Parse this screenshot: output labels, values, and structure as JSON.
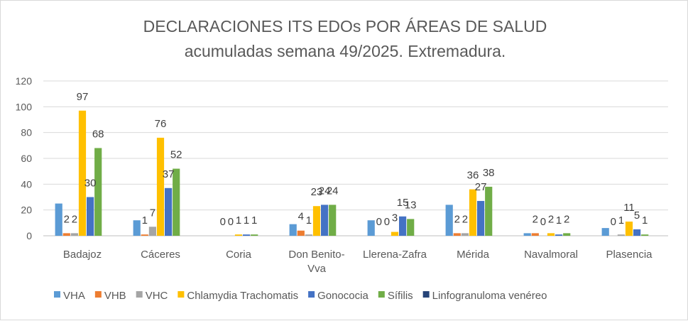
{
  "chart_data": {
    "type": "bar",
    "title": "DECLARACIONES ITS EDOs POR ÁREAS DE SALUD",
    "subtitle": "acumuladas semana 49/2025. Extremadura.",
    "categories": [
      "Badajoz",
      "Cáceres",
      "Coria",
      "Don Benito-Vva",
      "Llerena-Zafra",
      "Mérida",
      "Navalmoral",
      "Plasencia"
    ],
    "category_lines": [
      [
        "Badajoz"
      ],
      [
        "Cáceres"
      ],
      [
        "Coria"
      ],
      [
        "Don Benito-",
        "Vva"
      ],
      [
        "Llerena-Zafra"
      ],
      [
        "Mérida"
      ],
      [
        "Navalmoral"
      ],
      [
        "Plasencia"
      ]
    ],
    "ylim": [
      0,
      120
    ],
    "yticks": [
      0,
      20,
      40,
      60,
      80,
      100,
      120
    ],
    "grid": true,
    "legend_position": "bottom",
    "series": [
      {
        "name": "VHA",
        "color": "#5b9bd5",
        "values": [
          25,
          12,
          0,
          9,
          12,
          24,
          2,
          6
        ],
        "labels": [
          "",
          "",
          "",
          "",
          "",
          "",
          "",
          ""
        ]
      },
      {
        "name": "VHB",
        "color": "#ed7d31",
        "values": [
          2,
          1,
          0,
          4,
          0,
          2,
          2,
          0
        ],
        "labels": [
          "2",
          "1",
          "0",
          "4",
          "0",
          "2",
          "2",
          "0"
        ]
      },
      {
        "name": "VHC",
        "color": "#a5a5a5",
        "values": [
          2,
          7,
          0,
          1,
          0,
          2,
          0,
          1
        ],
        "labels": [
          "2",
          "7",
          "0",
          "1",
          "0",
          "2",
          "0",
          "1"
        ]
      },
      {
        "name": "Chlamydia Trachomatis",
        "color": "#ffc000",
        "values": [
          97,
          76,
          1,
          23,
          3,
          36,
          2,
          11
        ],
        "labels": [
          "97",
          "76",
          "1",
          "23",
          "3",
          "36",
          "2",
          "11"
        ]
      },
      {
        "name": "Gonococia",
        "color": "#4472c4",
        "values": [
          30,
          37,
          1,
          24,
          15,
          27,
          1,
          5
        ],
        "labels": [
          "30",
          "37",
          "1",
          "24",
          "15",
          "27",
          "1",
          "5"
        ]
      },
      {
        "name": "Sífilis",
        "color": "#70ad47",
        "values": [
          68,
          52,
          1,
          24,
          13,
          38,
          2,
          1
        ],
        "labels": [
          "68",
          "52",
          "1",
          "24",
          "13",
          "38",
          "2",
          "1"
        ]
      },
      {
        "name": "Linfogranuloma venéreo",
        "color": "#264478",
        "values": [
          0,
          0,
          0,
          0,
          0,
          0,
          0,
          0
        ],
        "labels": [
          "",
          "",
          "",
          "",
          "",
          "",
          "",
          ""
        ]
      }
    ]
  }
}
